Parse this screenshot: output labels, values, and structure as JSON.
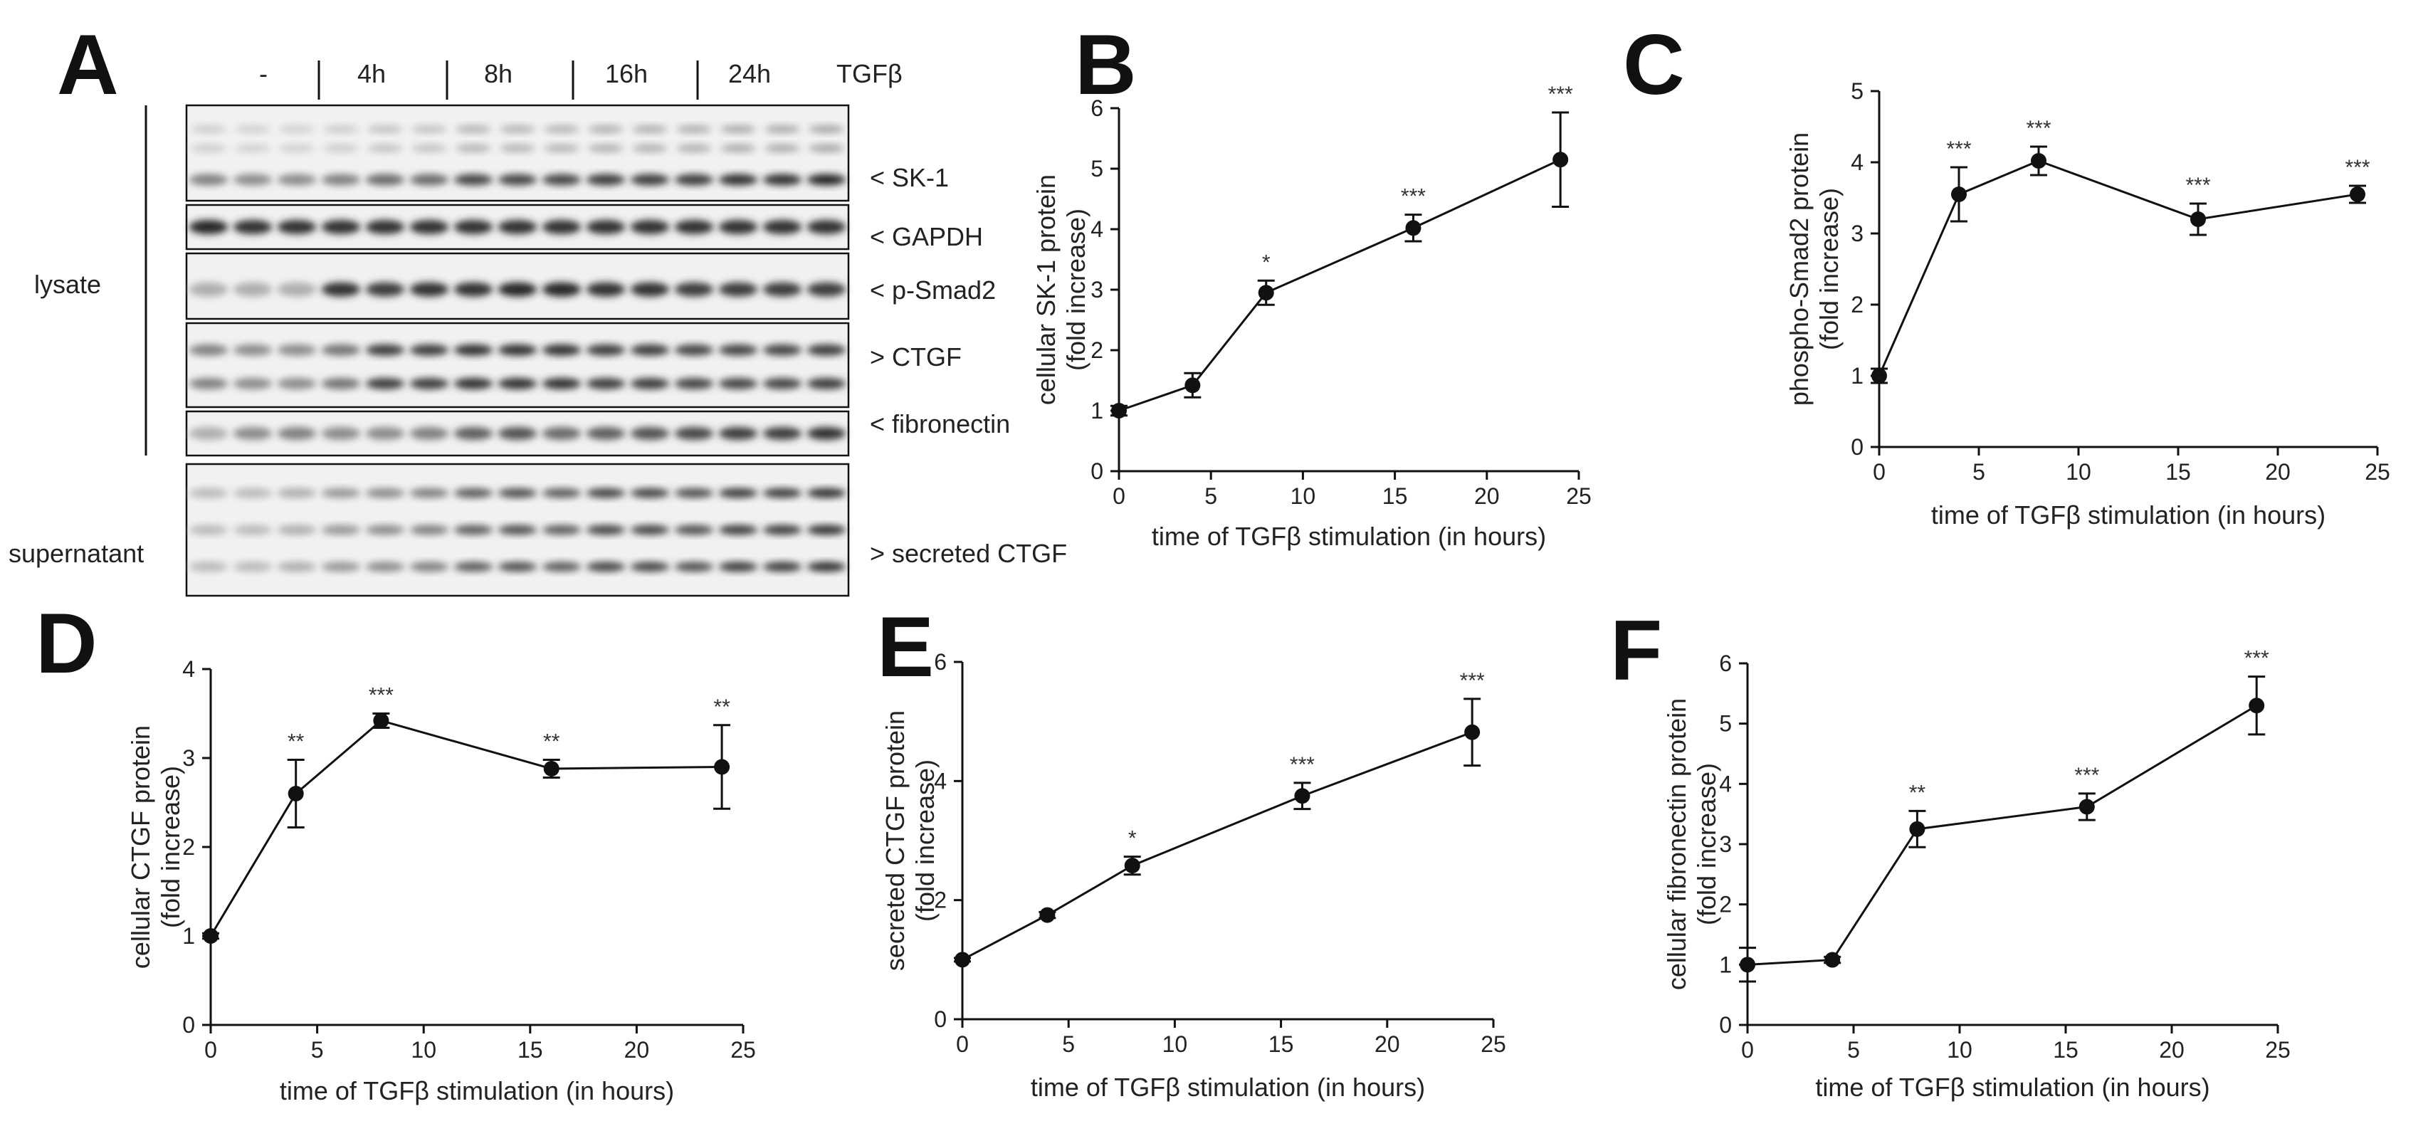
{
  "panels": {
    "A": {
      "letter": "A",
      "conditions": [
        "-",
        "4h",
        "8h",
        "16h",
        "24h"
      ],
      "treatment_label": "TGFβ",
      "bands": [
        {
          "label": "< SK-1"
        },
        {
          "label": "< GAPDH"
        },
        {
          "label": "< p-Smad2"
        },
        {
          "label": "> CTGF"
        },
        {
          "label": "< fibronectin"
        },
        {
          "label": "> secreted CTGF"
        }
      ],
      "lysate_label": "lysate",
      "supernatant_label": "supernatant"
    }
  },
  "chart_data": [
    {
      "panel": "B",
      "letter": "B",
      "type": "line",
      "x": [
        0,
        4,
        8,
        16,
        24
      ],
      "y": [
        1.0,
        1.42,
        2.95,
        4.02,
        5.15
      ],
      "err": [
        0.08,
        0.2,
        0.2,
        0.22,
        0.78
      ],
      "significance": [
        "",
        "",
        "*",
        "***",
        "***"
      ],
      "xlim": [
        0,
        25
      ],
      "ylim": [
        0,
        6
      ],
      "xticks": [
        0,
        5,
        10,
        15,
        20,
        25
      ],
      "yticks": [
        0,
        1,
        2,
        3,
        4,
        5,
        6
      ],
      "xlabel": "time of TGFβ stimulation (in hours)",
      "ylabel_line1": "cellular SK-1 protein",
      "ylabel_line2": "(fold increase)"
    },
    {
      "panel": "C",
      "letter": "C",
      "type": "line",
      "x": [
        0,
        4,
        8,
        16,
        24
      ],
      "y": [
        1.0,
        3.55,
        4.02,
        3.2,
        3.55
      ],
      "err": [
        0.1,
        0.38,
        0.2,
        0.22,
        0.12
      ],
      "significance": [
        "",
        "***",
        "***",
        "***",
        "***"
      ],
      "xlim": [
        0,
        25
      ],
      "ylim": [
        0,
        5
      ],
      "xticks": [
        0,
        5,
        10,
        15,
        20,
        25
      ],
      "yticks": [
        0,
        1,
        2,
        3,
        4,
        5
      ],
      "xlabel": "time of TGFβ stimulation (in hours)",
      "ylabel_line1": "phospho-Smad2 protein",
      "ylabel_line2": "(fold increase)"
    },
    {
      "panel": "D",
      "letter": "D",
      "type": "line",
      "x": [
        0,
        4,
        8,
        16,
        24
      ],
      "y": [
        1.0,
        2.6,
        3.42,
        2.88,
        2.9
      ],
      "err": [
        0.03,
        0.38,
        0.08,
        0.1,
        0.47
      ],
      "significance": [
        "",
        "**",
        "***",
        "**",
        "**"
      ],
      "xlim": [
        0,
        25
      ],
      "ylim": [
        0,
        4
      ],
      "xticks": [
        0,
        5,
        10,
        15,
        20,
        25
      ],
      "yticks": [
        0,
        1,
        2,
        3,
        4
      ],
      "xlabel": "time of TGFβ stimulation (in hours)",
      "ylabel_line1": "cellular CTGF protein",
      "ylabel_line2": "(fold increase)"
    },
    {
      "panel": "E",
      "letter": "E",
      "type": "line",
      "x": [
        0,
        4,
        8,
        16,
        24
      ],
      "y": [
        1.0,
        1.75,
        2.58,
        3.75,
        4.82
      ],
      "err": [
        0.03,
        0.05,
        0.15,
        0.22,
        0.56
      ],
      "significance": [
        "",
        "",
        "*",
        "***",
        "***"
      ],
      "xlim": [
        0,
        25
      ],
      "ylim": [
        0,
        6
      ],
      "xticks": [
        0,
        5,
        10,
        15,
        20,
        25
      ],
      "yticks": [
        0,
        2,
        4,
        6
      ],
      "xlabel": "time of TGFβ stimulation (in hours)",
      "ylabel_line1": "secreted CTGF protein",
      "ylabel_line2": "(fold increase)"
    },
    {
      "panel": "F",
      "letter": "F",
      "type": "line",
      "x": [
        0,
        4,
        8,
        16,
        24
      ],
      "y": [
        1.0,
        1.08,
        3.25,
        3.62,
        5.3
      ],
      "err": [
        0.28,
        0.05,
        0.3,
        0.22,
        0.48
      ],
      "significance": [
        "",
        "",
        "**",
        "***",
        "***"
      ],
      "xlim": [
        0,
        25
      ],
      "ylim": [
        0,
        6
      ],
      "xticks": [
        0,
        5,
        10,
        15,
        20,
        25
      ],
      "yticks": [
        0,
        1,
        2,
        3,
        4,
        5,
        6
      ],
      "xlabel": "time of TGFβ stimulation (in hours)",
      "ylabel_line1": "cellular fibronectin protein",
      "ylabel_line2": "(fold increase)"
    }
  ]
}
